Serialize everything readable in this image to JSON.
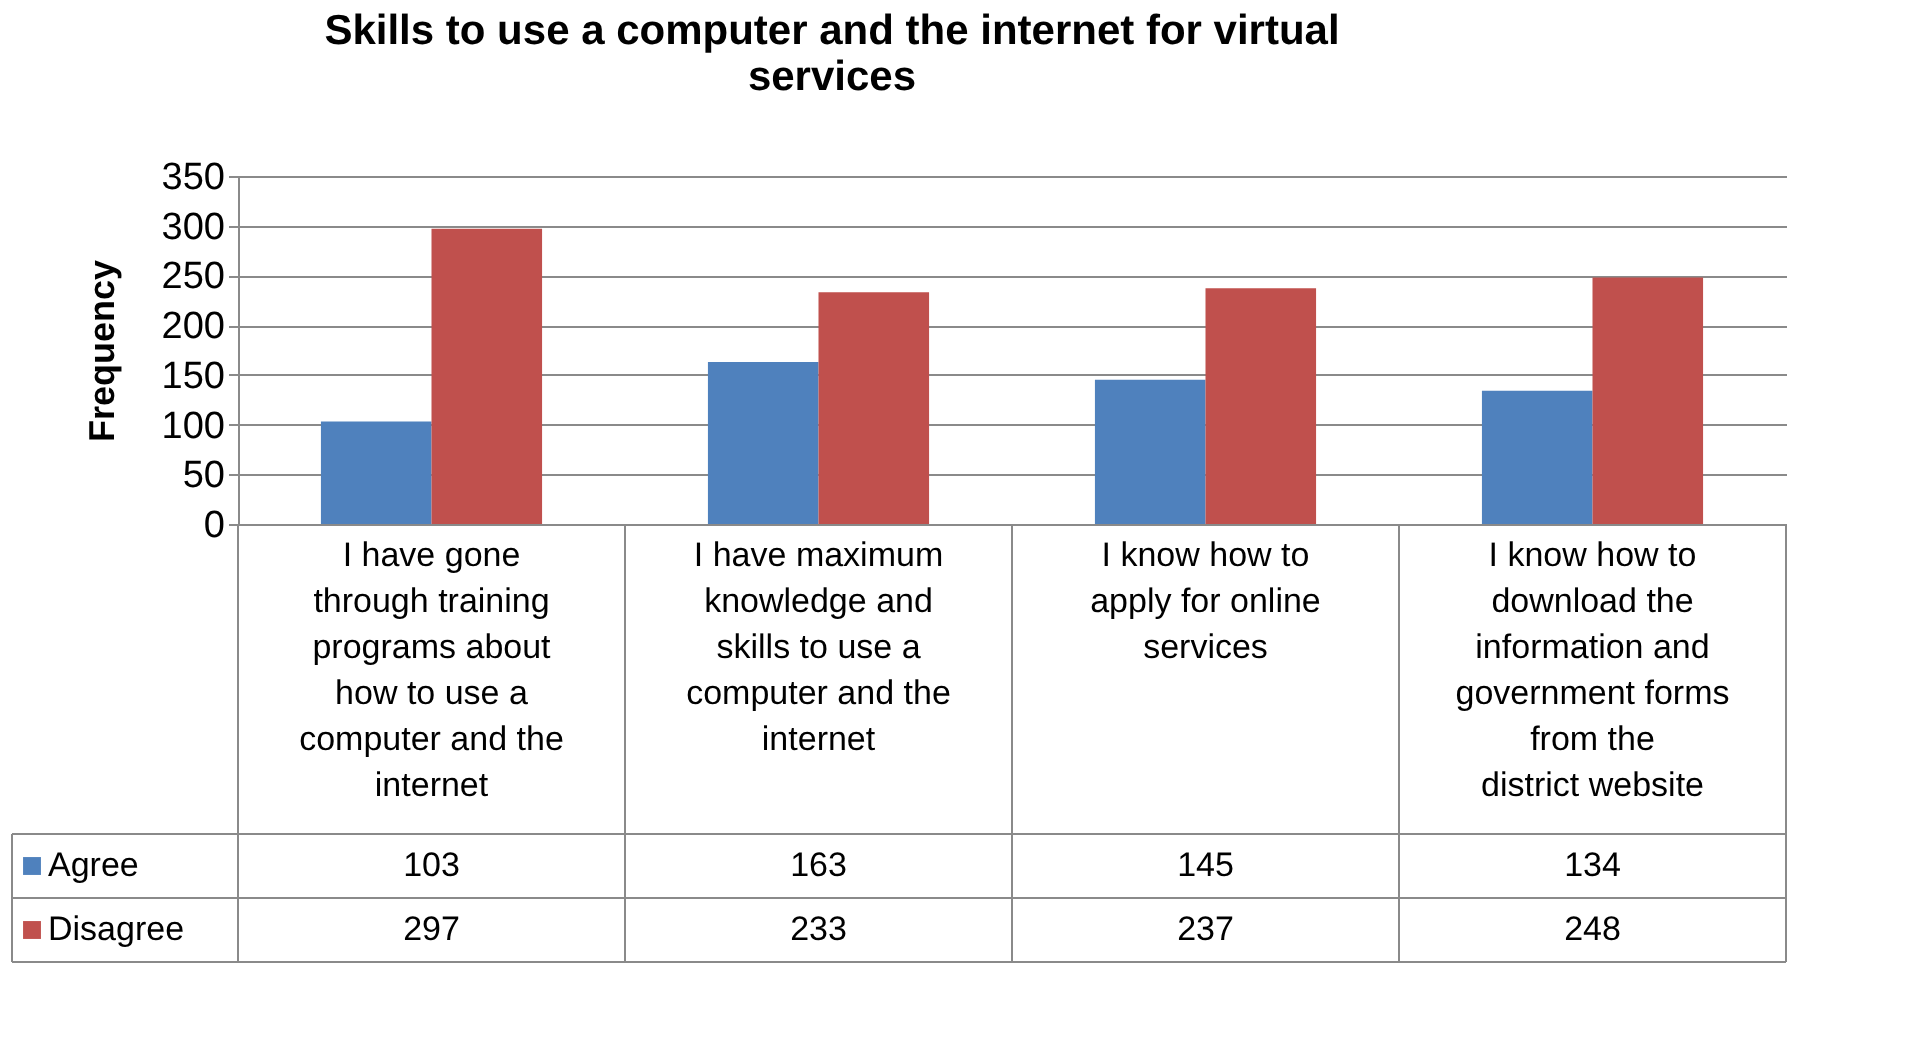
{
  "chart_data": {
    "type": "bar",
    "title": "Skills to use a computer and the internet for  virtual services",
    "ylabel": "Frequency",
    "categories": [
      "I have gone through training programs about how to use a computer and the internet",
      "I have maximum knowledge and skills to use a computer and the internet",
      "I know how to apply for online services",
      "I know how to download the information and government forms from the district website"
    ],
    "series": [
      {
        "name": "Agree",
        "color": "#4f81bd",
        "values": [
          103,
          163,
          145,
          134
        ]
      },
      {
        "name": "Disagree",
        "color": "#c0504d",
        "values": [
          297,
          233,
          237,
          248
        ]
      }
    ],
    "ylim": [
      0,
      350
    ],
    "yticks": [
      0,
      50,
      100,
      150,
      200,
      250,
      300,
      350
    ],
    "grid": "y",
    "data_labels": true,
    "legend": "bottom left"
  }
}
